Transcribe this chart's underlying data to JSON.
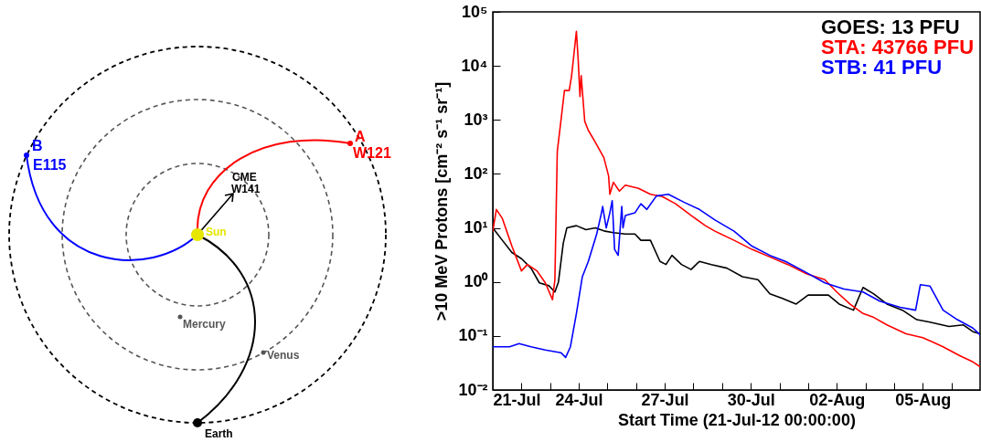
{
  "chart_data": [
    {
      "type": "other",
      "annotations": [
        "B",
        "E115",
        "A",
        "W121",
        "CME",
        "W141",
        "Sun",
        "Mercury",
        "Venus",
        "Earth"
      ]
    },
    {
      "type": "line",
      "xlabel": "Start Time (21-Jul-12 00:00:00)",
      "ylabel": ">10 MeV Protons [cm⁻² s⁻¹ sr⁻¹]",
      "log": true,
      "legend": "top right",
      "line_style": "solid",
      "xlim": [
        "--07-21",
        "--08-07"
      ],
      "xticks": [
        {
          "value": "--07-21",
          "label": "21-Jul"
        },
        {
          "value": "--07-22",
          "label": null
        },
        {
          "value": "--07-23",
          "label": null
        },
        {
          "value": "--07-24",
          "label": "24-Jul"
        },
        {
          "value": "--07-25",
          "label": null
        },
        {
          "value": "--07-26",
          "label": null
        },
        {
          "value": "--07-27",
          "label": "27-Jul"
        },
        {
          "value": "--07-28",
          "label": null
        },
        {
          "value": "--07-29",
          "label": null
        },
        {
          "value": "--07-30",
          "label": "30-Jul"
        },
        {
          "value": "--07-31",
          "label": null
        },
        {
          "value": "--08-01",
          "label": null
        },
        {
          "value": "--08-02",
          "label": "02-Aug"
        },
        {
          "value": "--08-03",
          "label": null
        },
        {
          "value": "--08-04",
          "label": null
        },
        {
          "value": "--08-05",
          "label": "05-Aug"
        },
        {
          "value": "--08-06",
          "label": null
        }
      ],
      "ylim": [
        0.01,
        100000
      ],
      "yticks": [
        {
          "value": 0.01,
          "label": "10⁻²"
        },
        {
          "value": 0.1,
          "label": "10⁻¹"
        },
        {
          "value": 1,
          "label": "10⁰"
        },
        {
          "value": 10,
          "label": "10¹"
        },
        {
          "value": 100,
          "label": "10²"
        },
        {
          "value": 1000,
          "label": "10³"
        },
        {
          "value": 10000,
          "label": "10⁴"
        },
        {
          "value": 100000,
          "label": "10⁵"
        }
      ],
      "series": [
        {
          "name": "GOES: 13 PFU",
          "color": "#000000",
          "x": [
            "--07-21T00:00",
            "--07-21T08:00",
            "--07-21T16:00",
            "--07-22T00:00",
            "--07-22T08:00",
            "--07-22T15:00",
            "--07-22T23:00",
            "--07-23T04:00",
            "--07-23T07:00",
            "--07-23T11:00",
            "--07-23T14:00",
            "--07-23T22:00",
            "--07-24T06:00",
            "--07-24T14:00",
            "--07-24T22:00",
            "--07-25T05:00",
            "--07-25T15:00",
            "--07-25T23:00",
            "--07-26T04:00",
            "--07-26T12:00",
            "--07-26T20:00",
            "--07-27T01:00",
            "--07-27T06:00",
            "--07-27T14:00",
            "--07-27T22:00",
            "--07-28T05:00",
            "--07-28T15:00",
            "--07-29T04:00",
            "--07-29T17:00",
            "--07-30T06:00",
            "--07-30T16:00",
            "--07-31T02:00",
            "--07-31T14:00",
            "--08-01T00:00",
            "--08-01T17:00",
            "--08-02T02:00",
            "--08-02T14:00",
            "--08-02T22:00",
            "--08-03T07:00",
            "--08-03T18:00",
            "--08-04T07:00",
            "--08-04T19:00",
            "--08-05T06:00",
            "--08-05T22:00",
            "--08-06T10:00",
            "--08-06T18:00",
            "--08-07T00:00"
          ],
          "values": [
            10,
            5.9,
            3.5,
            2.7,
            1.8,
            0.96,
            0.85,
            0.65,
            1.0,
            5.2,
            10,
            11,
            9.3,
            10,
            8.7,
            8.2,
            7.7,
            7.7,
            5.9,
            5.9,
            2.4,
            2.1,
            3.1,
            2.1,
            1.7,
            2.4,
            2.1,
            1.8,
            1.25,
            1.1,
            0.6,
            0.5,
            0.39,
            0.57,
            0.57,
            0.39,
            0.3,
            0.79,
            0.6,
            0.39,
            0.3,
            0.2,
            0.18,
            0.15,
            0.16,
            0.12,
            0.11
          ]
        },
        {
          "name": "STA: 43766 PFU",
          "color": "#ff0000",
          "x": [
            "--07-21T00:00",
            "--07-21T03:00",
            "--07-21T08:00",
            "--07-21T16:00",
            "--07-22T00:00",
            "--07-22T05:00",
            "--07-22T13:00",
            "--07-22T20:00",
            "--07-23T02:00",
            "--07-23T04:00",
            "--07-23T06:00",
            "--07-23T09:00",
            "--07-23T12:00",
            "--07-23T16:00",
            "--07-23T18:00",
            "--07-23T22:00",
            "--07-23T23:30",
            "--07-24T01:00",
            "--07-24T02:00",
            "--07-24T05:00",
            "--07-24T08:00",
            "--07-24T14:00",
            "--07-24T21:00",
            "--07-25T01:00",
            "--07-25T02:00",
            "--07-25T05:00",
            "--07-25T10:00",
            "--07-25T15:00",
            "--07-26T02:00",
            "--07-26T12:00",
            "--07-26T22:00",
            "--07-27T09:00",
            "--07-27T22:00",
            "--07-28T10:00",
            "--07-28T18:00",
            "--07-29T10:00",
            "--07-30T01:00",
            "--07-30T16:00",
            "--07-31T07:00",
            "--07-31T23:00",
            "--08-01T14:00",
            "--08-02T00:00",
            "--08-02T11:00",
            "--08-02T22:00",
            "--08-03T07:00",
            "--08-03T18:00",
            "--08-04T10:00",
            "--08-05T00:00",
            "--08-05T17:00",
            "--08-06T07:00",
            "--08-06T18:00",
            "--08-07T00:00"
          ],
          "values": [
            8.7,
            22,
            15,
            4.6,
            1.6,
            2.1,
            1.6,
            0.96,
            0.47,
            1.1,
            260,
            940,
            3500,
            3500,
            6600,
            43766,
            13000,
            2700,
            6600,
            940,
            640,
            380,
            200,
            91,
            42,
            70,
            48,
            62,
            54,
            42,
            38,
            28,
            17,
            11,
            8.7,
            5.9,
            4.0,
            2.9,
            2.1,
            1.4,
            1.1,
            0.65,
            0.39,
            0.26,
            0.22,
            0.16,
            0.11,
            0.093,
            0.063,
            0.043,
            0.033,
            0.027
          ]
        },
        {
          "name": "STB: 41 PFU",
          "color": "#0000ff",
          "x": [
            "--07-21T00:00",
            "--07-21T14:00",
            "--07-21T22:00",
            "--07-22T08:00",
            "--07-22T20:00",
            "--07-23T09:00",
            "--07-23T13:00",
            "--07-23T17:00",
            "--07-23T22:00",
            "--07-24T03:00",
            "--07-24T08:00",
            "--07-24T15:00",
            "--07-24T19:00",
            "--07-24T20:00",
            "--07-24T23:00",
            "--07-25T02:00",
            "--07-25T04:00",
            "--07-25T06:00",
            "--07-25T09:00",
            "--07-25T12:00",
            "--07-25T13:00",
            "--07-25T15:00",
            "--07-25T23:00",
            "--07-26T04:00",
            "--07-26T09:00",
            "--07-26T17:00",
            "--07-27T03:00",
            "--07-27T16:00",
            "--07-28T05:00",
            "--07-28T18:00",
            "--07-29T10:00",
            "--07-30T01:00",
            "--07-30T16:00",
            "--07-31T05:00",
            "--07-31T20:00",
            "--08-01T14:00",
            "--08-02T06:00",
            "--08-02T22:00",
            "--08-03T12:00",
            "--08-04T05:00",
            "--08-04T18:00",
            "--08-04T22:00",
            "--08-05T06:00",
            "--08-05T17:00",
            "--08-06T05:00",
            "--08-06T18:00",
            "--08-07T00:00"
          ],
          "values": [
            0.063,
            0.063,
            0.072,
            0.063,
            0.055,
            0.049,
            0.04,
            0.063,
            0.26,
            1.25,
            2.4,
            7.7,
            19,
            25,
            10,
            19,
            32,
            4.0,
            3.1,
            25,
            10,
            17,
            19,
            28,
            22,
            39,
            42,
            30,
            22,
            14,
            8.7,
            4.6,
            3.1,
            2.4,
            1.6,
            0.96,
            0.74,
            0.65,
            0.44,
            0.34,
            0.3,
            0.89,
            0.84,
            0.3,
            0.2,
            0.14,
            0.105
          ]
        }
      ]
    }
  ]
}
